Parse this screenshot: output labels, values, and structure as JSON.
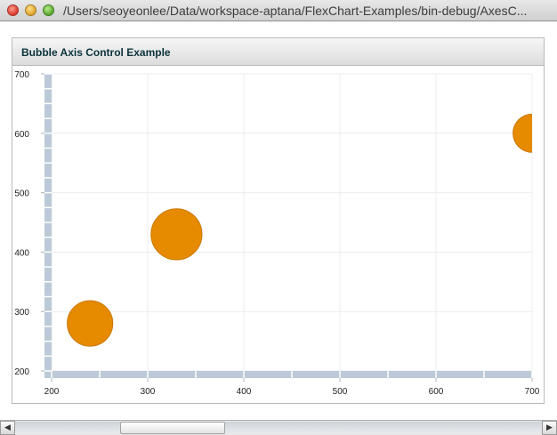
{
  "window": {
    "title": "/Users/seoyeonlee/Data/workspace-aptana/FlexChart-Examples/bin-debug/AxesC..."
  },
  "panel": {
    "title": "Bubble Axis Control Example"
  },
  "colors": {
    "bubble": "#e68a00",
    "axis": "#bcc9d8",
    "grid": "#ececec"
  },
  "icons": {
    "close": "close-icon",
    "minimize": "minimize-icon",
    "zoom": "zoom-icon",
    "scroll_left": "arrow-left-icon",
    "scroll_right": "arrow-right-icon"
  },
  "chart_data": {
    "type": "scatter",
    "title": "",
    "xlabel": "",
    "ylabel": "",
    "xlim": [
      200,
      700
    ],
    "ylim": [
      200,
      700
    ],
    "xticks": [
      200,
      300,
      400,
      500,
      600,
      700
    ],
    "yticks": [
      200,
      300,
      400,
      500,
      600,
      700
    ],
    "grid": true,
    "series": [
      {
        "points": [
          {
            "x": 240,
            "y": 280,
            "size": 1.0
          },
          {
            "x": 330,
            "y": 430,
            "size": 1.25
          },
          {
            "x": 700,
            "y": 600,
            "size": 0.7
          }
        ]
      }
    ]
  }
}
